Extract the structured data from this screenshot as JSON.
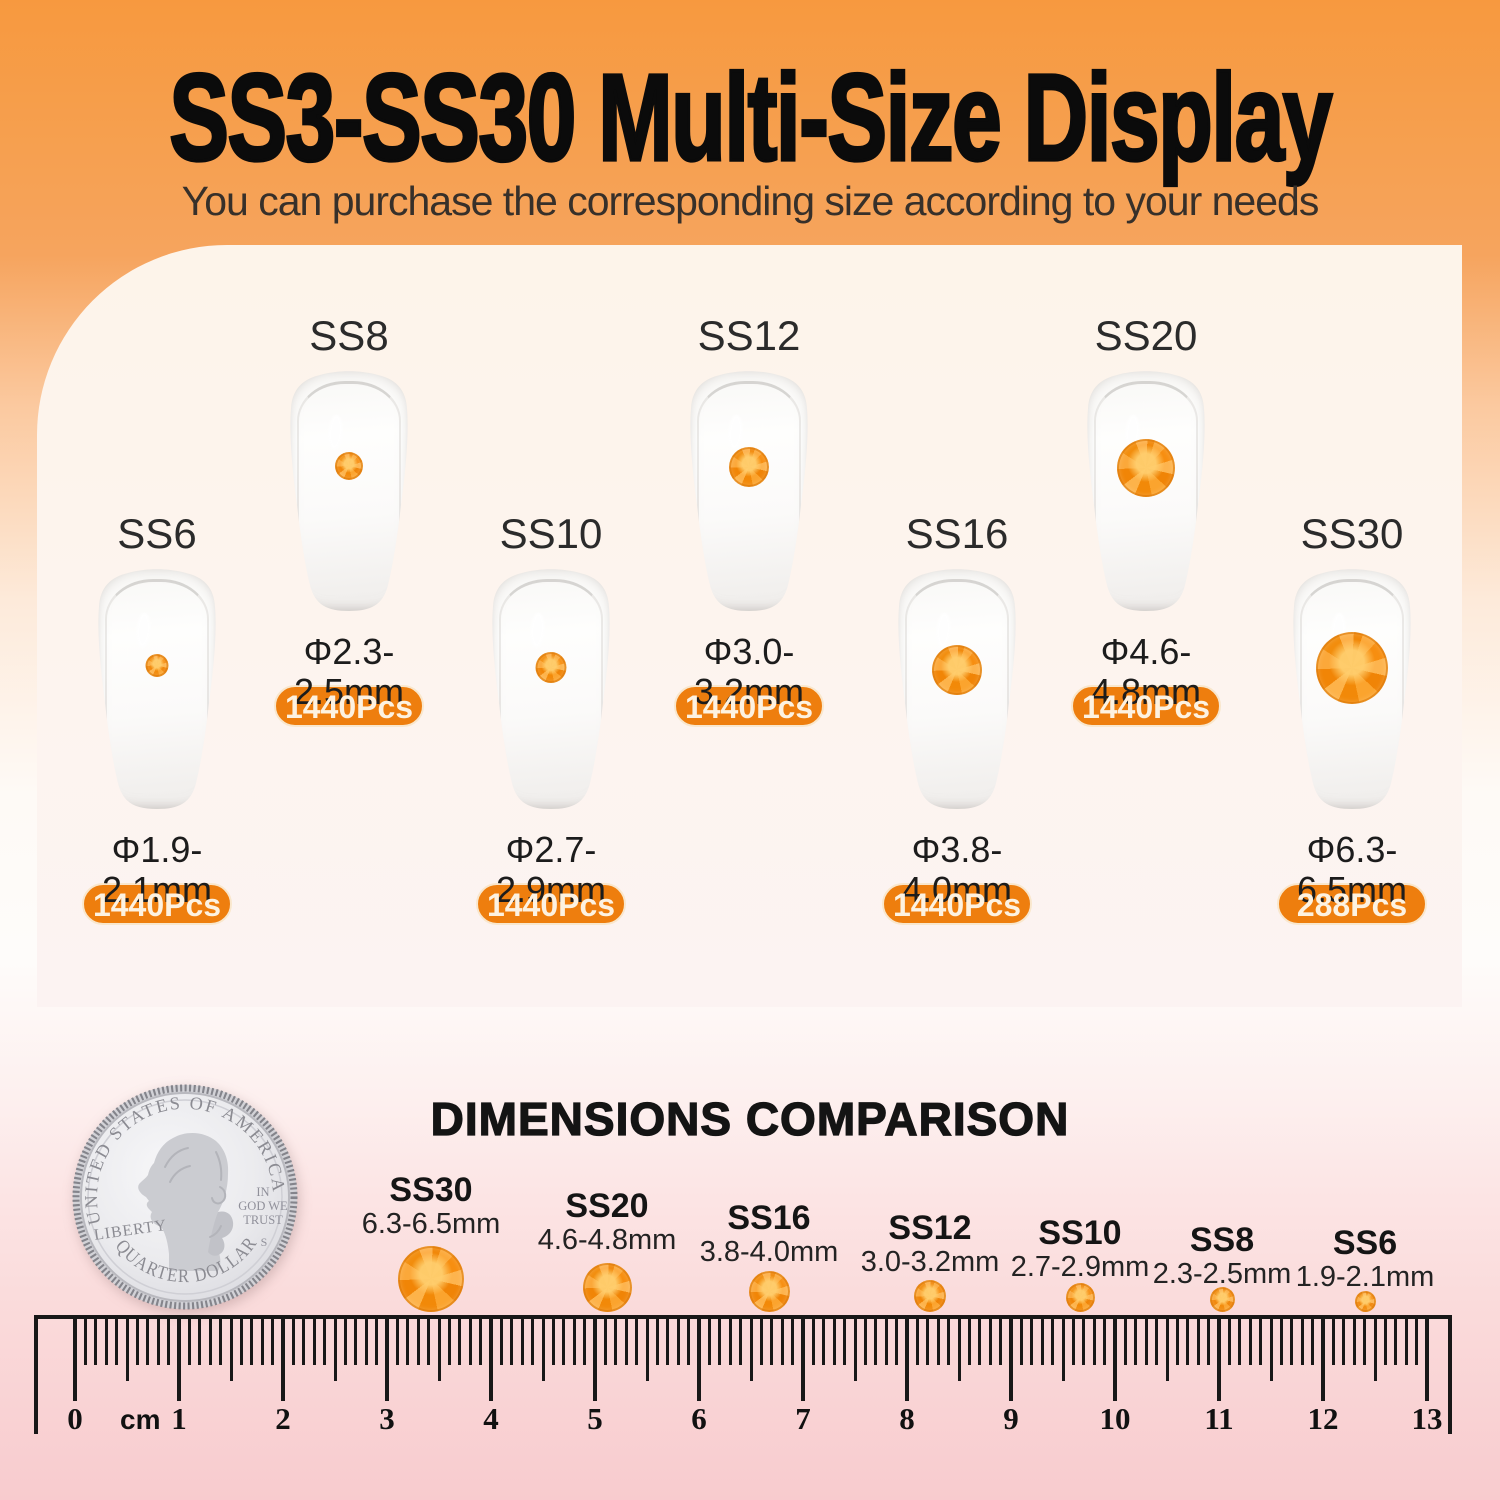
{
  "header": {
    "title": "SS3-SS30 Multi-Size Display",
    "subtitle": "You can purchase the corresponding size according to your needs"
  },
  "panel": {
    "items": [
      {
        "label": "SS6",
        "diameter": "Φ1.9-2.1mm",
        "count": "1440Pcs"
      },
      {
        "label": "SS8",
        "diameter": "Φ2.3-2.5mm",
        "count": "1440Pcs"
      },
      {
        "label": "SS10",
        "diameter": "Φ2.7-2.9mm",
        "count": "1440Pcs"
      },
      {
        "label": "SS12",
        "diameter": "Φ3.0-3.2mm",
        "count": "1440Pcs"
      },
      {
        "label": "SS16",
        "diameter": "Φ3.8-4.0mm",
        "count": "1440Pcs"
      },
      {
        "label": "SS20",
        "diameter": "Φ4.6-4.8mm",
        "count": "1440Pcs"
      },
      {
        "label": "SS30",
        "diameter": "Φ6.3-6.5mm",
        "count": "288Pcs"
      }
    ]
  },
  "comparison": {
    "title": "DIMENSIONS COMPARISON",
    "coin": {
      "top_text": "UNITED STATES OF AMERICA",
      "left_text": "LIBERTY",
      "motto_lines": [
        "IN",
        "GOD WE",
        "TRUST"
      ],
      "mint_mark": "S",
      "bottom_text": "QUARTER DOLLAR"
    },
    "sizes": [
      {
        "label": "SS30",
        "range": "6.3-6.5mm"
      },
      {
        "label": "SS20",
        "range": "4.6-4.8mm"
      },
      {
        "label": "SS16",
        "range": "3.8-4.0mm"
      },
      {
        "label": "SS12",
        "range": "3.0-3.2mm"
      },
      {
        "label": "SS10",
        "range": "2.7-2.9mm"
      },
      {
        "label": "SS8",
        "range": "2.3-2.5mm"
      },
      {
        "label": "SS6",
        "range": "1.9-2.1mm"
      }
    ],
    "ruler": {
      "unit": "cm",
      "numbers": [
        0,
        1,
        2,
        3,
        4,
        5,
        6,
        7,
        8,
        9,
        10,
        11,
        12,
        13
      ]
    }
  },
  "colors": {
    "accent": "#EE7E0E",
    "gem": "#F6920F",
    "title": "#0B0B0B"
  }
}
